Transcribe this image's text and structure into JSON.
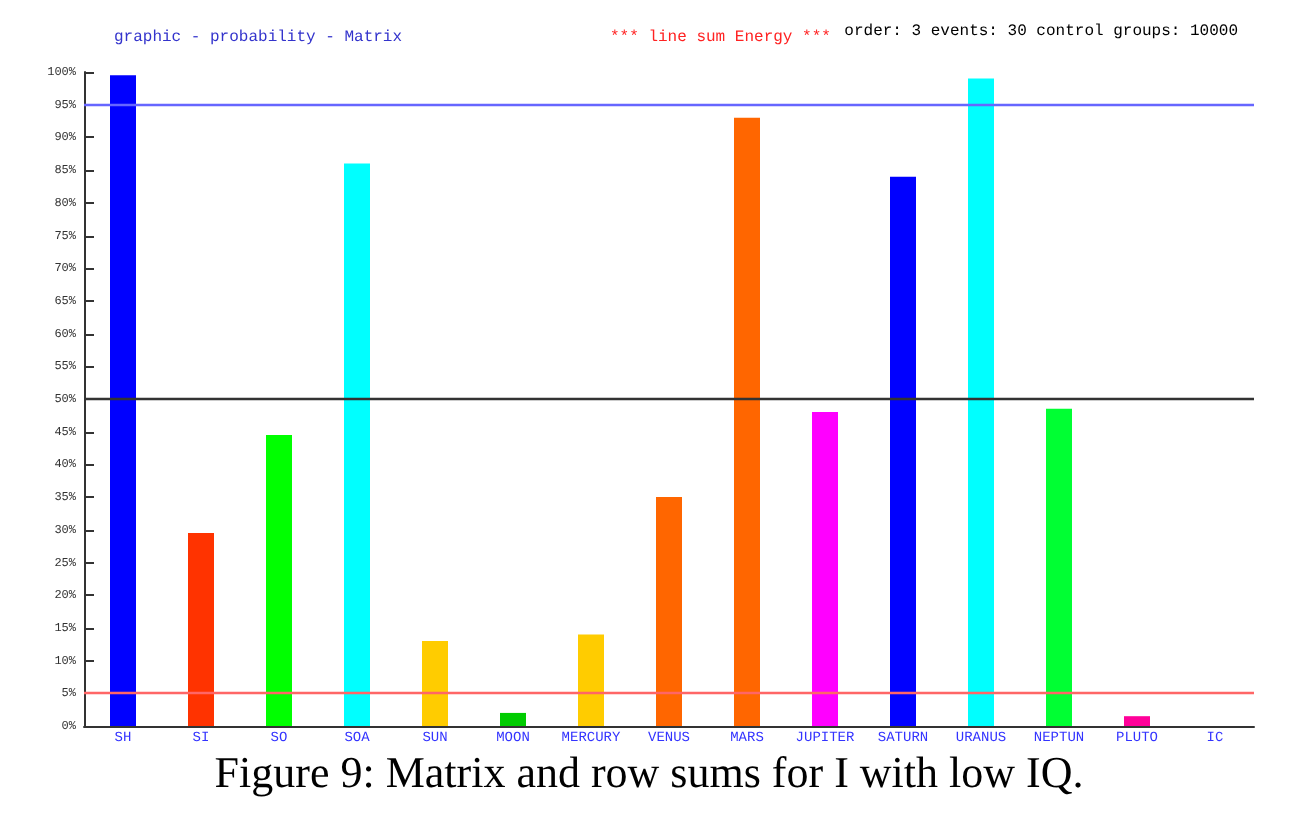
{
  "chart_data": {
    "type": "bar",
    "title": "graphic - probability - Matrix",
    "subtitle": "*** line sum Energy ***",
    "annotations": [
      "order: 3 events: 30 control groups: 10000",
      "Figure 9: Matrix and row sums for I with low IQ."
    ],
    "categories": [
      "SH",
      "SI",
      "SO",
      "SOA",
      "SUN",
      "MOON",
      "MERCURY",
      "VENUS",
      "MARS",
      "JUPITER",
      "SATURN",
      "URANUS",
      "NEPTUN",
      "PLUTO",
      "IC"
    ],
    "values": [
      99.5,
      29.5,
      44.5,
      86,
      13,
      2,
      14,
      35,
      93,
      48,
      84,
      99,
      48.5,
      1.5,
      null
    ],
    "colors": [
      "#0000ff",
      "#ff3300",
      "#00ff00",
      "#00ffff",
      "#ffcc00",
      "#00cc00",
      "#ffcc00",
      "#ff6600",
      "#ff6600",
      "#ff00ff",
      "#0000ff",
      "#00ffff",
      "#00ff33",
      "#ff0099",
      "#888888"
    ],
    "ylim": [
      0,
      100
    ],
    "yticks": [
      {
        "value": 0,
        "label": "0%"
      },
      {
        "value": 5,
        "label": "5%"
      },
      {
        "value": 10,
        "label": "10%"
      },
      {
        "value": 15,
        "label": "15%"
      },
      {
        "value": 20,
        "label": "20%"
      },
      {
        "value": 25,
        "label": "25%"
      },
      {
        "value": 30,
        "label": "30%"
      },
      {
        "value": 35,
        "label": "35%"
      },
      {
        "value": 40,
        "label": "40%"
      },
      {
        "value": 45,
        "label": "45%"
      },
      {
        "value": 50,
        "label": "50%"
      },
      {
        "value": 55,
        "label": "55%"
      },
      {
        "value": 60,
        "label": "60%"
      },
      {
        "value": 65,
        "label": "65%"
      },
      {
        "value": 70,
        "label": "70%"
      },
      {
        "value": 75,
        "label": "75%"
      },
      {
        "value": 80,
        "label": "80%"
      },
      {
        "value": 85,
        "label": "85%"
      },
      {
        "value": 90,
        "label": "90%"
      },
      {
        "value": 95,
        "label": "95%"
      },
      {
        "value": 100,
        "label": "100%"
      }
    ],
    "ref_lines": [
      {
        "axis": "y",
        "value": 95,
        "label": null,
        "color": "#6666ff"
      },
      {
        "axis": "y",
        "value": 5,
        "label": null,
        "color": "#ff6666"
      },
      {
        "axis": "y",
        "value": 50,
        "label": null,
        "color": "#333333"
      }
    ],
    "grid": false
  }
}
